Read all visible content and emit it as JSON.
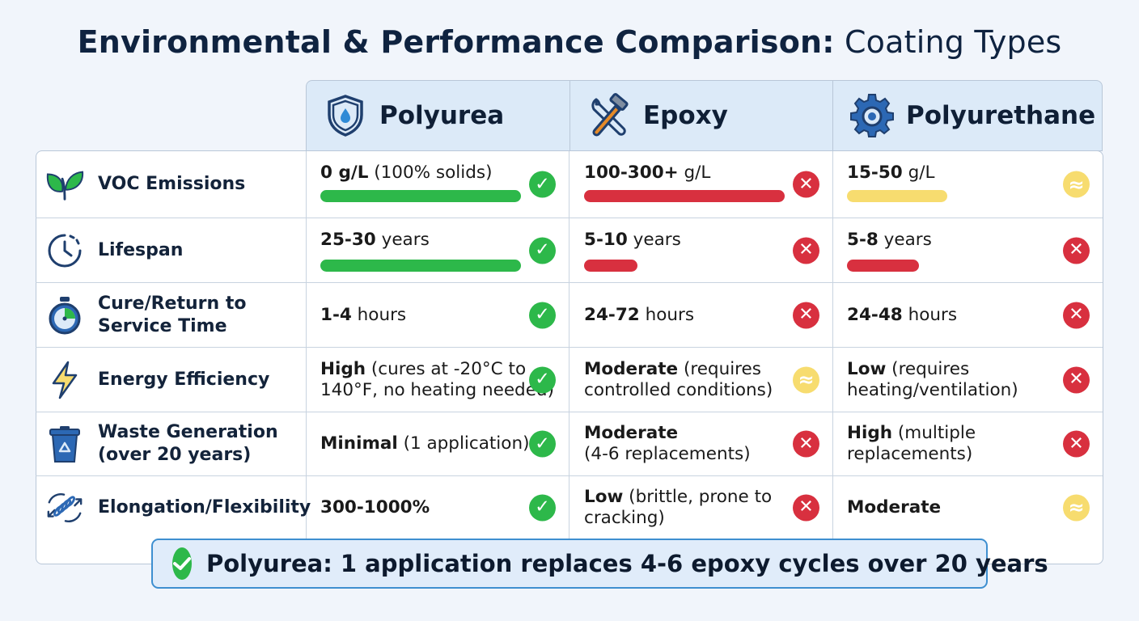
{
  "title": {
    "bold": "Environmental & Performance Comparison:",
    "light": "Coating Types"
  },
  "columns": [
    {
      "label": "Polyurea",
      "icon": "shield-droplet-icon"
    },
    {
      "label": "Epoxy",
      "icon": "wrench-hammer-icon"
    },
    {
      "label": "Polyurethane",
      "icon": "gear-icon"
    }
  ],
  "rows": [
    {
      "criterion": [
        "VOC Emissions"
      ],
      "icon": "leaves-icon",
      "cells": [
        {
          "lines": [
            {
              "bold": "0 g/L",
              "rest": " (100% solids)"
            }
          ],
          "status": "good",
          "bar": 0.88
        },
        {
          "lines": [
            {
              "bold": "100-300+",
              "rest": " g/L"
            }
          ],
          "status": "bad",
          "bar": 0.88
        },
        {
          "lines": [
            {
              "bold": "15-50",
              "rest": " g/L"
            }
          ],
          "status": "mid",
          "bar": 0.44
        }
      ]
    },
    {
      "criterion": [
        "Lifespan"
      ],
      "icon": "clock-icon",
      "cells": [
        {
          "lines": [
            {
              "bold": "25-30",
              "rest": " years"
            }
          ],
          "status": "good",
          "bar": 0.88
        },
        {
          "lines": [
            {
              "bold": "5-10",
              "rest": " years"
            }
          ],
          "status": "bad",
          "bar": 0.23
        },
        {
          "lines": [
            {
              "bold": "5-8",
              "rest": " years"
            }
          ],
          "status": "bad",
          "bar": 0.31
        }
      ]
    },
    {
      "criterion": [
        "Cure/Return to",
        "Service Time"
      ],
      "icon": "stopwatch-icon",
      "cells": [
        {
          "lines": [
            {
              "bold": "1-4",
              "rest": " hours"
            }
          ],
          "status": "good"
        },
        {
          "lines": [
            {
              "bold": "24-72",
              "rest": " hours"
            }
          ],
          "status": "bad"
        },
        {
          "lines": [
            {
              "bold": "24-48",
              "rest": " hours"
            }
          ],
          "status": "bad"
        }
      ]
    },
    {
      "criterion": [
        "Energy Efficiency"
      ],
      "icon": "lightning-icon",
      "cells": [
        {
          "lines": [
            {
              "bold": "High",
              "rest": " (cures at -20°C to"
            },
            {
              "bold": "",
              "rest": "140°F, no heating needed)"
            }
          ],
          "status": "good"
        },
        {
          "lines": [
            {
              "bold": "Moderate",
              "rest": " (requires"
            },
            {
              "bold": "",
              "rest": "controlled conditions)"
            }
          ],
          "status": "mid"
        },
        {
          "lines": [
            {
              "bold": "Low",
              "rest": " (requires"
            },
            {
              "bold": "",
              "rest": "heating/ventilation)"
            }
          ],
          "status": "bad"
        }
      ]
    },
    {
      "criterion": [
        "Waste Generation",
        "(over 20 years)"
      ],
      "icon": "recycle-bin-icon",
      "cells": [
        {
          "lines": [
            {
              "bold": "Minimal",
              "rest": " (1 application)"
            }
          ],
          "status": "good"
        },
        {
          "lines": [
            {
              "bold": "Moderate",
              "rest": ""
            },
            {
              "bold": "",
              "rest": "(4-6 replacements)"
            }
          ],
          "status": "bad"
        },
        {
          "lines": [
            {
              "bold": "High",
              "rest": " (multiple"
            },
            {
              "bold": "",
              "rest": "replacements)"
            }
          ],
          "status": "bad"
        }
      ]
    },
    {
      "criterion": [
        "Elongation/Flexibility"
      ],
      "icon": "spring-icon",
      "cells": [
        {
          "lines": [
            {
              "bold": "300-1000%",
              "rest": ""
            }
          ],
          "status": "good"
        },
        {
          "lines": [
            {
              "bold": "Low",
              "rest": " (brittle, prone to"
            },
            {
              "bold": "",
              "rest": "cracking)"
            }
          ],
          "status": "bad"
        },
        {
          "lines": [
            {
              "bold": "Moderate",
              "rest": ""
            }
          ],
          "status": "mid"
        }
      ]
    }
  ],
  "status_glyphs": {
    "good": "✓",
    "bad": "✕",
    "mid": "≈"
  },
  "colors": {
    "good": "#2db84a",
    "bad": "#d8303f",
    "mid": "#f7dc6f",
    "accent": "#3e8fd0"
  },
  "banner": {
    "text": "Polyurea: 1 application replaces 4-6 epoxy cycles over 20 years"
  }
}
